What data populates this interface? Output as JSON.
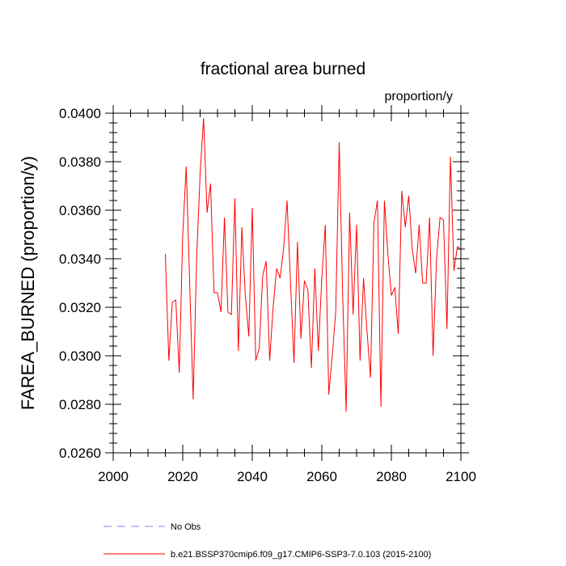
{
  "chart_data": {
    "type": "line",
    "title": "fractional area burned",
    "units_label": "proportion/y",
    "ylabel": "FAREA_BURNED  (proportion/y)",
    "xlabel": "",
    "xlim": [
      2000,
      2100
    ],
    "ylim": [
      0.026,
      0.04
    ],
    "x_ticks": [
      2000,
      2020,
      2040,
      2060,
      2080,
      2100
    ],
    "x_tick_labels": [
      "2000",
      "2020",
      "2040",
      "2060",
      "2080",
      "2100"
    ],
    "y_ticks": [
      0.026,
      0.028,
      0.03,
      0.032,
      0.034,
      0.036,
      0.038,
      0.04
    ],
    "y_tick_labels": [
      "0.0260",
      "0.0280",
      "0.0300",
      "0.0320",
      "0.0340",
      "0.0360",
      "0.0380",
      "0.0400"
    ],
    "grid": false,
    "legend_position": "bottom",
    "series": [
      {
        "name": "No Obs",
        "color": "#8080ff",
        "dash": "dashed",
        "values": []
      },
      {
        "name": "b.e21.BSSP370cmip6.f09_g17.CMIP6-SSP3-7.0.103 (2015-2100)",
        "color": "#ff0000",
        "dash": "solid",
        "x": [
          2015,
          2016,
          2017,
          2018,
          2019,
          2020,
          2021,
          2022,
          2023,
          2024,
          2025,
          2026,
          2027,
          2028,
          2029,
          2030,
          2031,
          2032,
          2033,
          2034,
          2035,
          2036,
          2037,
          2038,
          2039,
          2040,
          2041,
          2042,
          2043,
          2044,
          2045,
          2046,
          2047,
          2048,
          2049,
          2050,
          2051,
          2052,
          2053,
          2054,
          2055,
          2056,
          2057,
          2058,
          2059,
          2060,
          2061,
          2062,
          2063,
          2064,
          2065,
          2066,
          2067,
          2068,
          2069,
          2070,
          2071,
          2072,
          2073,
          2074,
          2075,
          2076,
          2077,
          2078,
          2079,
          2080,
          2081,
          2082,
          2083,
          2084,
          2085,
          2086,
          2087,
          2088,
          2089,
          2090,
          2091,
          2092,
          2093,
          2094,
          2095,
          2096,
          2097,
          2098,
          2099,
          2100
        ],
        "values": [
          0.0342,
          0.0298,
          0.0322,
          0.0323,
          0.0293,
          0.035,
          0.0378,
          0.033,
          0.0282,
          0.034,
          0.0375,
          0.0398,
          0.0359,
          0.0371,
          0.0326,
          0.0326,
          0.0318,
          0.0357,
          0.0318,
          0.0317,
          0.0365,
          0.0302,
          0.0353,
          0.0325,
          0.0308,
          0.0361,
          0.0298,
          0.0303,
          0.0333,
          0.0339,
          0.0298,
          0.032,
          0.0336,
          0.0332,
          0.0344,
          0.0364,
          0.033,
          0.0297,
          0.0347,
          0.0307,
          0.0331,
          0.0327,
          0.0295,
          0.0336,
          0.0302,
          0.0332,
          0.0354,
          0.0284,
          0.03,
          0.0318,
          0.0388,
          0.0325,
          0.0277,
          0.0359,
          0.0317,
          0.0354,
          0.0298,
          0.0332,
          0.031,
          0.0291,
          0.0355,
          0.0364,
          0.0279,
          0.0364,
          0.0342,
          0.0325,
          0.0328,
          0.0309,
          0.0368,
          0.0353,
          0.0366,
          0.0344,
          0.0334,
          0.0354,
          0.033,
          0.033,
          0.0357,
          0.03,
          0.034,
          0.0357,
          0.0356,
          0.0311,
          0.0382,
          0.0335,
          0.0345,
          0.0344
        ]
      }
    ]
  }
}
